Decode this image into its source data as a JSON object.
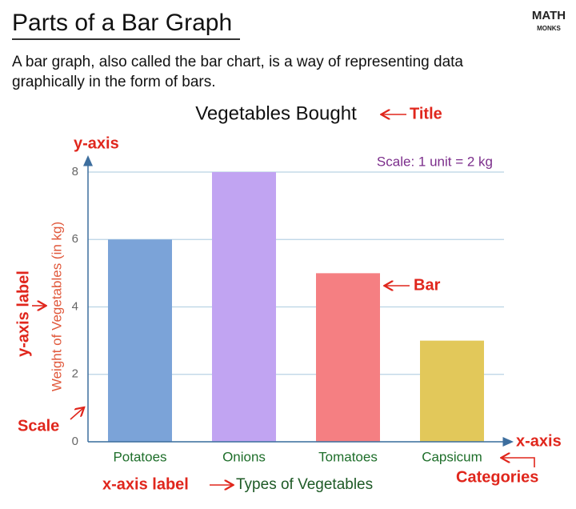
{
  "header": {
    "title": "Parts of a Bar Graph",
    "logo_top": "MATH",
    "logo_bottom": "MONKS"
  },
  "description": [
    "A bar graph, also called the bar chart, is a way of representing data",
    "graphically in the form of bars."
  ],
  "chart_data": {
    "type": "bar",
    "title": "Vegetables Bought",
    "categories": [
      "Potatoes",
      "Onions",
      "Tomatoes",
      "Capsicum"
    ],
    "values": [
      6,
      8,
      5,
      3
    ],
    "colors": [
      "#7ba3d8",
      "#c1a4f2",
      "#f57f82",
      "#e2c85a"
    ],
    "ylim": [
      0,
      8
    ],
    "yticks": [
      0,
      2,
      4,
      6,
      8
    ],
    "grid": true,
    "x_label": "Types of Vegetables",
    "y_label": "Weight of Vegetables (in kg)",
    "scale_note": "Scale: 1 unit = 2 kg",
    "annotations": {
      "title": "Title",
      "y_axis": "y-axis",
      "y_axis_label": "y-axis label",
      "scale": "Scale",
      "bar": "Bar",
      "x_axis": "x-axis",
      "categories": "Categories",
      "x_axis_label": "x-axis label"
    }
  }
}
